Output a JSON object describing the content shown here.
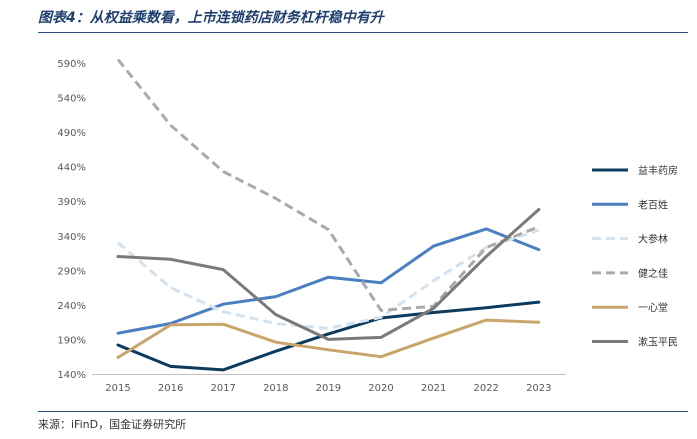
{
  "header": {
    "title": "图表4：从权益乘数看，上市连锁药店财务杠杆稳中有升"
  },
  "footer": {
    "source": "来源：iFinD，国金证券研究所"
  },
  "chart_data": {
    "type": "line",
    "title": "图表4：从权益乘数看，上市连锁药店财务杠杆稳中有升",
    "xlabel": "",
    "ylabel": "",
    "x": [
      "2015",
      "2016",
      "2017",
      "2018",
      "2019",
      "2020",
      "2021",
      "2022",
      "2023"
    ],
    "yticks": [
      "590%",
      "540%",
      "490%",
      "440%",
      "390%",
      "340%",
      "290%",
      "240%",
      "190%",
      "140%"
    ],
    "ylim": [
      140,
      590
    ],
    "legend_position": "right",
    "grid": false,
    "series": [
      {
        "name": "益丰药房",
        "color": "#0d3b5e",
        "dash": "solid",
        "values": [
          182,
          151,
          146,
          173,
          198,
          221,
          229,
          236,
          244
        ]
      },
      {
        "name": "老百姓",
        "color": "#4a7fc1",
        "dash": "solid",
        "values": [
          199,
          213,
          241,
          252,
          280,
          272,
          325,
          350,
          320
        ]
      },
      {
        "name": "大参林",
        "color": "#d4e2ef",
        "dash": "dashed",
        "values": [
          330,
          265,
          230,
          213,
          206,
          222,
          275,
          323,
          348
        ]
      },
      {
        "name": "健之佳",
        "color": "#aaaaaa",
        "dash": "dashed",
        "values": [
          595,
          500,
          433,
          394,
          349,
          232,
          238,
          323,
          353
        ]
      },
      {
        "name": "一心堂",
        "color": "#c9a46b",
        "dash": "solid",
        "values": [
          164,
          211,
          212,
          186,
          175,
          165,
          192,
          218,
          215
        ]
      },
      {
        "name": "漱玉平民",
        "color": "#7a7a7a",
        "dash": "solid",
        "values": [
          310,
          306,
          291,
          226,
          190,
          193,
          235,
          310,
          378
        ]
      }
    ]
  }
}
